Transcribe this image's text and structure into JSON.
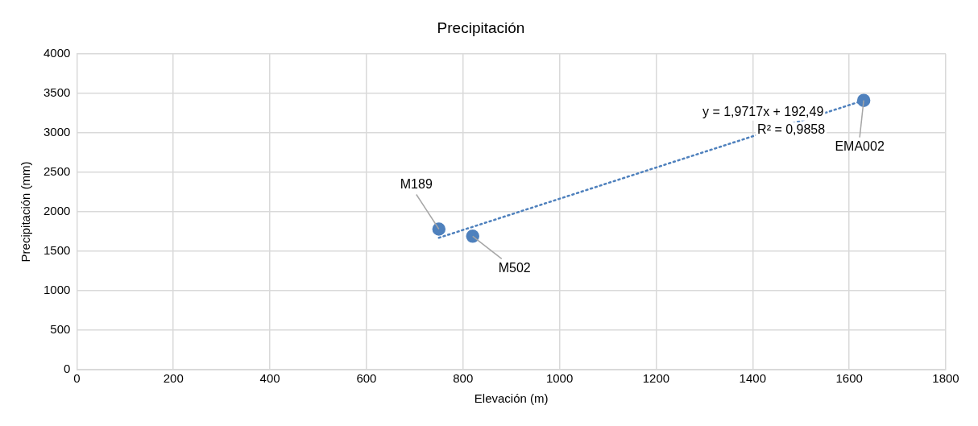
{
  "chart_data": {
    "type": "scatter",
    "title": "Precipitación",
    "xlabel": "Elevación (m)",
    "ylabel": "Precipitación (mm)",
    "xlim": [
      0,
      1800
    ],
    "xticks": [
      0,
      200,
      400,
      600,
      800,
      1000,
      1200,
      1400,
      1600,
      1800
    ],
    "ylim": [
      0,
      4000
    ],
    "yticks": [
      0,
      500,
      1000,
      1500,
      2000,
      2500,
      3000,
      3500,
      4000
    ],
    "grid": true,
    "legend": false,
    "marker": "circle",
    "series": [
      {
        "color": "#4f81bd",
        "x": [
          750,
          820,
          1630
        ],
        "values": [
          1780,
          1690,
          3410
        ]
      },
      {
        "type": "line",
        "color": "#4f81bd",
        "line_style": "dotted",
        "marker": "none",
        "x": [
          750,
          1630
        ],
        "values": [
          1670,
          3410
        ]
      }
    ],
    "annotations": [
      {
        "text": "M189",
        "x": 750,
        "y": 1780
      },
      {
        "text": "M502",
        "x": 820,
        "y": 1690
      },
      {
        "text": "EMA002",
        "x": 1630,
        "y": 3410
      },
      "y = 1,9717x + 192,49",
      "R² = 0,9858"
    ]
  }
}
